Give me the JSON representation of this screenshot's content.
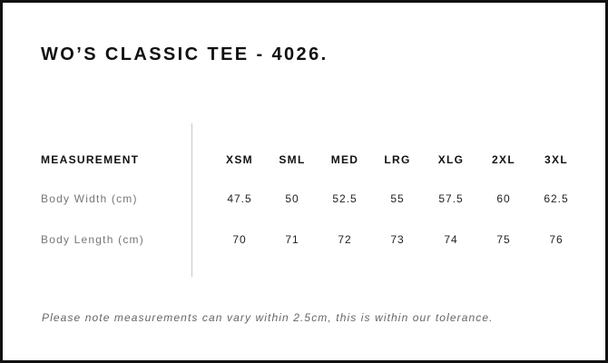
{
  "title": "WO’S CLASSIC TEE - 4026.",
  "table": {
    "header_label": "MEASUREMENT",
    "sizes": [
      "XSM",
      "SML",
      "MED",
      "LRG",
      "XLG",
      "2XL",
      "3XL"
    ],
    "rows": [
      {
        "label": "Body Width (cm)",
        "values": [
          "47.5",
          "50",
          "52.5",
          "55",
          "57.5",
          "60",
          "62.5"
        ]
      },
      {
        "label": "Body Length (cm)",
        "values": [
          "70",
          "71",
          "72",
          "73",
          "74",
          "75",
          "76"
        ]
      }
    ]
  },
  "note": "Please note measurements can vary within 2.5cm, this is within our tolerance."
}
